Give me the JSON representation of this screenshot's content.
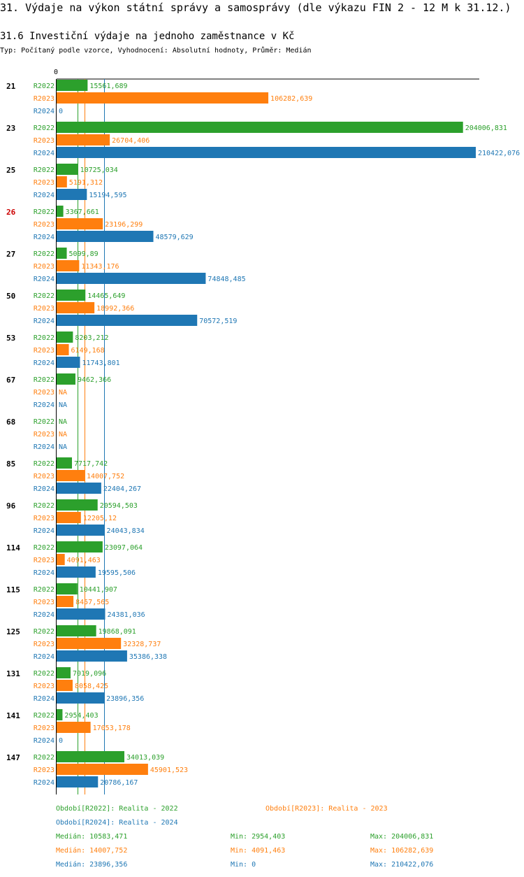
{
  "header": {
    "title": "31. Výdaje na výkon státní správy a samosprávy (dle výkazu FIN 2 - 12 M k 31.12.)",
    "subtitle": "31.6 Investiční výdaje na jednoho zaměstnance v Kč",
    "type_line": "Typ: Počítaný podle vzorce, Vyhodnocení: Absolutní hodnoty, Průměr: Medián"
  },
  "chart_data": {
    "type": "bar",
    "orientation": "horizontal",
    "title": "31.6 Investiční výdaje na jednoho zaměstnance v Kč",
    "axis_zero_label": "0",
    "xlim": [
      0,
      210422.076
    ],
    "categories": [
      "21",
      "23",
      "25",
      "26",
      "27",
      "50",
      "53",
      "67",
      "68",
      "85",
      "96",
      "114",
      "115",
      "125",
      "131",
      "141",
      "147"
    ],
    "highlight_category": "26",
    "series": [
      {
        "name": "R2022",
        "color": "#2ca02c",
        "values": [
          15561.689,
          204006.831,
          10725.034,
          3367.661,
          5099.89,
          14465.649,
          8203.212,
          9462.366,
          null,
          7717.742,
          20594.503,
          23097.064,
          10441.907,
          19868.091,
          7019.096,
          2954.403,
          34013.039
        ],
        "labels": [
          "15561,689",
          "204006,831",
          "10725,034",
          "3367,661",
          "5099,89",
          "14465,649",
          "8203,212",
          "9462,366",
          "NA",
          "7717,742",
          "20594,503",
          "23097,064",
          "10441,907",
          "19868,091",
          "7019,096",
          "2954,403",
          "34013,039"
        ]
      },
      {
        "name": "R2023",
        "color": "#ff7f0e",
        "values": [
          106282.639,
          26704.406,
          5191.312,
          23196.299,
          11343.176,
          18992.366,
          6149.168,
          null,
          null,
          14007.752,
          12205.12,
          4091.463,
          8457.565,
          32328.737,
          8058.425,
          17053.178,
          45901.523
        ],
        "labels": [
          "106282,639",
          "26704,406",
          "5191,312",
          "23196,299",
          "11343,176",
          "18992,366",
          "6149,168",
          "NA",
          "NA",
          "14007,752",
          "12205,12",
          "4091,463",
          "8457,565",
          "32328,737",
          "8058,425",
          "17053,178",
          "45901,523"
        ]
      },
      {
        "name": "R2024",
        "color": "#1f77b4",
        "values": [
          0,
          210422.076,
          15194.595,
          48579.629,
          74848.485,
          70572.519,
          11743.801,
          null,
          null,
          22404.267,
          24043.834,
          19595.506,
          24381.036,
          35386.338,
          23896.356,
          0,
          20786.167
        ],
        "labels": [
          "0",
          "210422,076",
          "15194,595",
          "48579,629",
          "74848,485",
          "70572,519",
          "11743,801",
          "NA",
          "NA",
          "22404,267",
          "24043,834",
          "19595,506",
          "24381,036",
          "35386,338",
          "23896,356",
          "0",
          "20786,167"
        ]
      }
    ],
    "medians": [
      10583.471,
      14007.752,
      23896.356
    ]
  },
  "legend": {
    "period_2022": "Období[R2022]: Realita - 2022",
    "period_2023": "Období[R2023]: Realita - 2023",
    "period_2024": "Období[R2024]: Realita - 2024",
    "stats": [
      {
        "median": "Medián: 10583,471",
        "min": "Min: 2954,403",
        "max": "Max: 204006,831"
      },
      {
        "median": "Medián: 14007,752",
        "min": "Min: 4091,463",
        "max": "Max: 106282,639"
      },
      {
        "median": "Medián: 23896,356",
        "min": "Min: 0",
        "max": "Max: 210422,076"
      }
    ]
  }
}
